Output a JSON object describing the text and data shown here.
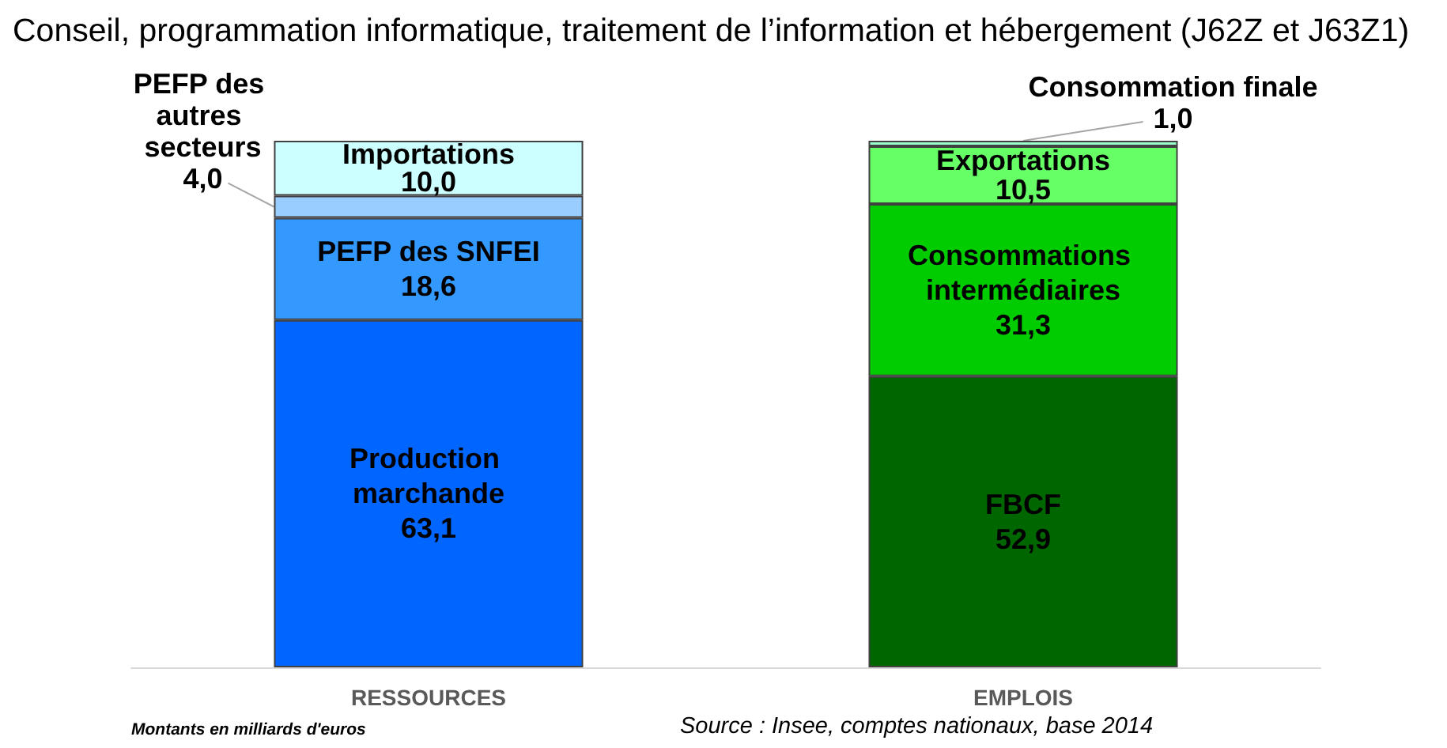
{
  "chart_data": {
    "type": "bar",
    "title": "Conseil, programmation informatique, traitement de l’information et hébergement (J62Z et J63Z1)",
    "categories": [
      "RESSOURCES",
      "EMPLOIS"
    ],
    "stacked": true,
    "tick_labels": "x",
    "series": [
      {
        "name": "Production marchande",
        "color": "#0066ff",
        "values": [
          63.1,
          null
        ],
        "value_labels": [
          "63,1",
          null
        ]
      },
      {
        "name": "PEFP des SNFEI",
        "color": "#3399ff",
        "values": [
          18.6,
          null
        ],
        "value_labels": [
          "18,6",
          null
        ]
      },
      {
        "name": "PEFP des autres secteurs",
        "color": "#99ccff",
        "values": [
          4.0,
          null
        ],
        "value_labels": [
          "4,0",
          null
        ]
      },
      {
        "name": "Importations",
        "color": "#ccffff",
        "values": [
          10.0,
          null
        ],
        "value_labels": [
          "10,0",
          null
        ]
      },
      {
        "name": "FBCF",
        "color": "#006600",
        "values": [
          null,
          52.9
        ],
        "value_labels": [
          null,
          "52,9"
        ]
      },
      {
        "name": "Consommations intermédiaires",
        "color": "#00cc00",
        "values": [
          null,
          31.3
        ],
        "value_labels": [
          null,
          "31,3"
        ]
      },
      {
        "name": "Exportations",
        "color": "#66ff66",
        "values": [
          null,
          10.5
        ],
        "value_labels": [
          null,
          "10,5"
        ]
      },
      {
        "name": "Consommation finale",
        "color": "#99ffcc",
        "values": [
          null,
          1.0
        ],
        "value_labels": [
          null,
          "1,0"
        ]
      }
    ],
    "annotations": [
      "Montants en milliards d'euros",
      "Source : Insee, comptes nationaux, base 2014"
    ]
  }
}
